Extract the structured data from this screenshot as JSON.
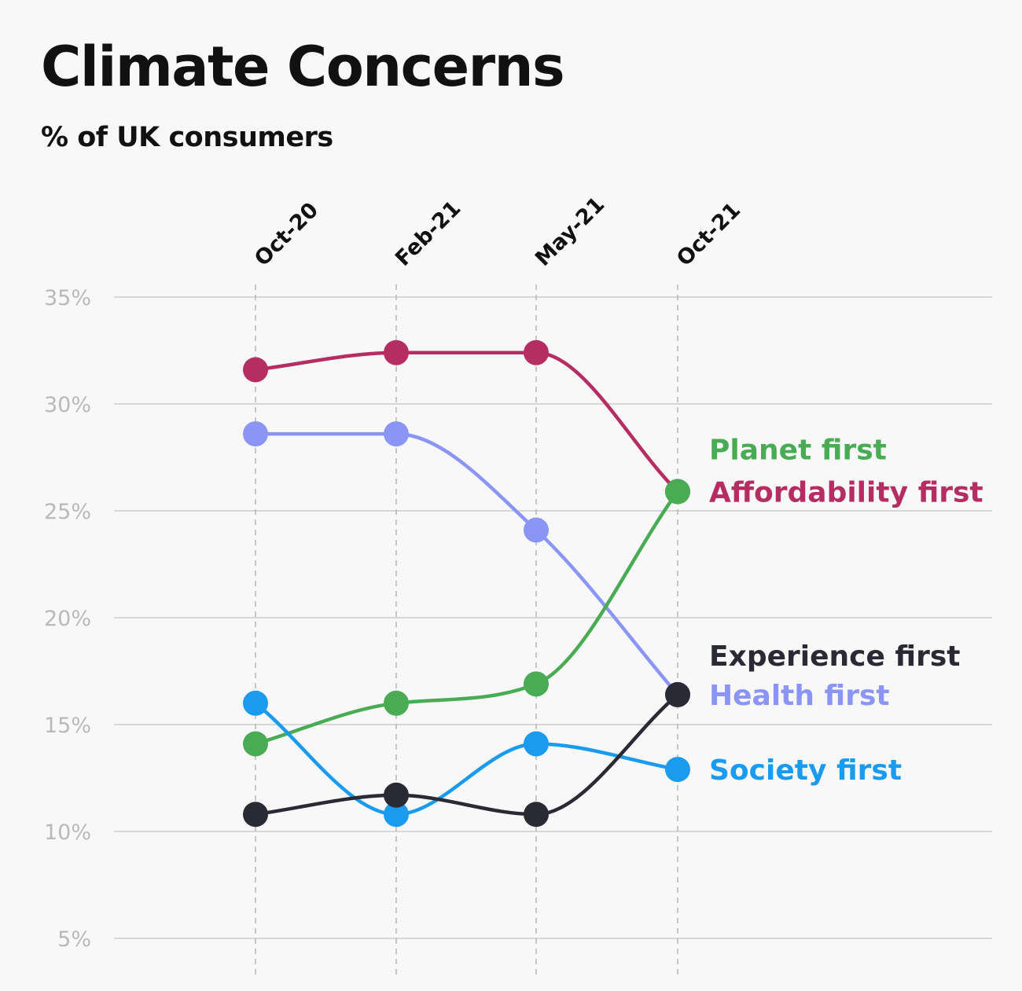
{
  "chart_data": {
    "type": "line",
    "title": "Climate Concerns",
    "subtitle": "% of UK consumers",
    "categories": [
      "Oct-20",
      "Feb-21",
      "May-21",
      "Oct-21"
    ],
    "ylim": [
      5,
      35
    ],
    "yticks": [
      5,
      10,
      15,
      20,
      25,
      30,
      35
    ],
    "ytick_labels": [
      "5%",
      "10%",
      "15%",
      "20%",
      "25%",
      "30%",
      "35%"
    ],
    "grid": true,
    "legend": "end-of-line labels",
    "series": [
      {
        "name": "Affordability first",
        "color": "#b52d62",
        "values": [
          31.6,
          32.4,
          32.4,
          25.9
        ]
      },
      {
        "name": "Health first",
        "color": "#8b95f5",
        "values": [
          28.6,
          28.6,
          24.1,
          16.4
        ]
      },
      {
        "name": "Planet first",
        "color": "#4aab55",
        "values": [
          14.1,
          16.0,
          16.9,
          25.9
        ]
      },
      {
        "name": "Society first",
        "color": "#1a9bf0",
        "values": [
          16.0,
          10.8,
          14.1,
          12.9
        ]
      },
      {
        "name": "Experience first",
        "color": "#2a2a34",
        "values": [
          10.8,
          11.7,
          10.8,
          16.4
        ]
      }
    ]
  }
}
